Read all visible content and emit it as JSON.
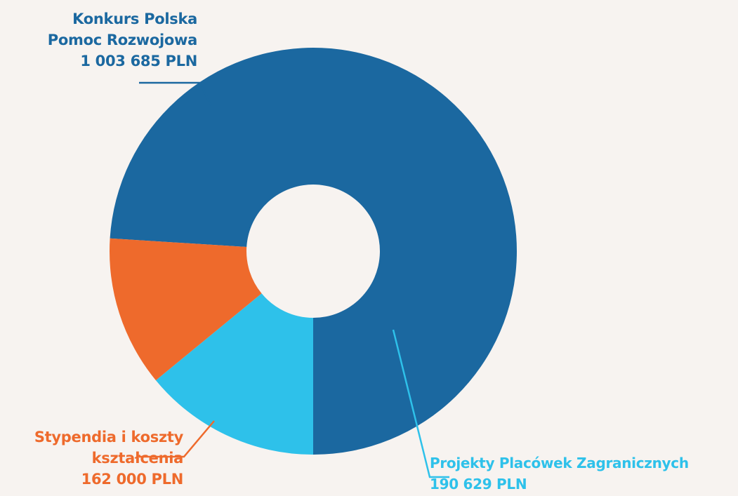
{
  "chart_data": {
    "type": "pie",
    "variant": "donut",
    "slices": [
      {
        "label_lines": [
          "Konkurs Polska",
          "Pomoc Rozwojowa",
          "1 003 685 PLN"
        ],
        "value": 1003685,
        "color": "#1b68a0"
      },
      {
        "label_lines": [
          "Projekty Placówek Zagranicznych",
          "190 629 PLN"
        ],
        "value": 190629,
        "color": "#2ec1ea"
      },
      {
        "label_lines": [
          "Stypendia i koszty",
          "kształcenia",
          "162 000 PLN"
        ],
        "value": 162000,
        "color": "#ee6a2c"
      }
    ],
    "legend": "none (labels placed beside slices with leader lines)"
  },
  "background": "#f7f3f0"
}
